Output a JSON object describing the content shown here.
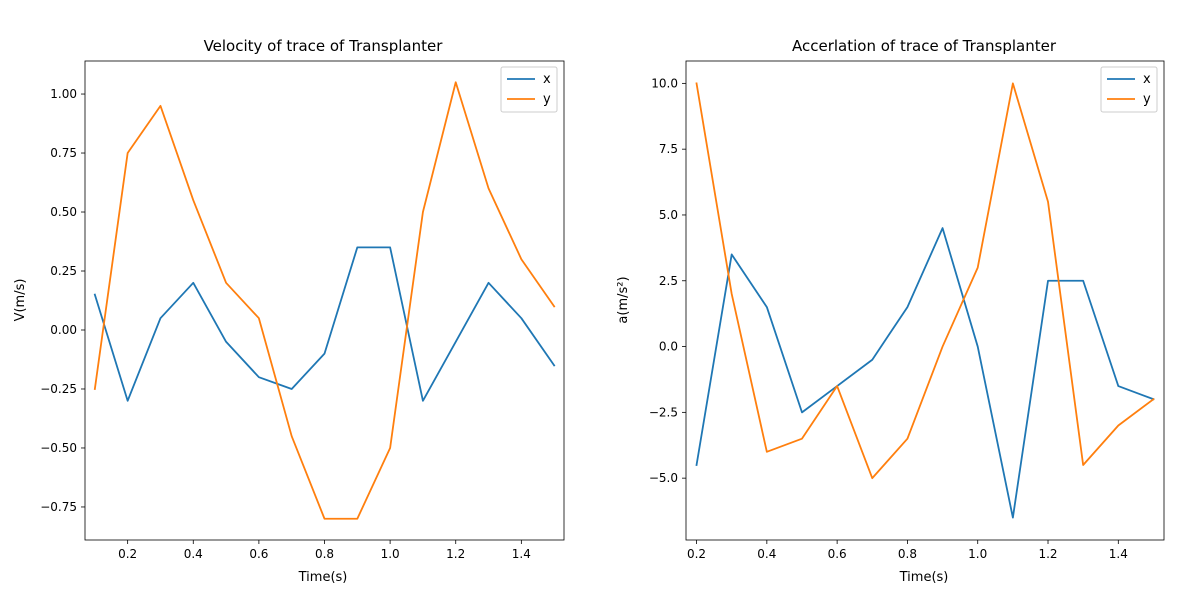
{
  "chart_data": [
    {
      "type": "line",
      "title": "Velocity of trace of Transplanter",
      "xlabel": "Time(s)",
      "ylabel": "V(m/s)",
      "xlim": [
        0.07,
        1.53
      ],
      "ylim": [
        -0.89,
        1.14
      ],
      "xticks": [
        0.2,
        0.4,
        0.6,
        0.8,
        1.0,
        1.2,
        1.4
      ],
      "xtick_labels": [
        "0.2",
        "0.4",
        "0.6",
        "0.8",
        "1.0",
        "1.2",
        "1.4"
      ],
      "yticks": [
        -0.75,
        -0.5,
        -0.25,
        0.0,
        0.25,
        0.5,
        0.75,
        1.0
      ],
      "ytick_labels": [
        "−0.75",
        "−0.50",
        "−0.25",
        "0.00",
        "0.25",
        "0.50",
        "0.75",
        "1.00"
      ],
      "legend_position": "top-right",
      "x": [
        0.1,
        0.2,
        0.3,
        0.4,
        0.5,
        0.6,
        0.7,
        0.8,
        0.9,
        1.0,
        1.1,
        1.2,
        1.3,
        1.4,
        1.5
      ],
      "series": [
        {
          "name": "x",
          "color": "#1f77b4",
          "values": [
            0.15,
            -0.3,
            0.05,
            0.2,
            -0.05,
            -0.2,
            -0.25,
            -0.1,
            0.35,
            0.35,
            -0.3,
            -0.05,
            0.2,
            0.05,
            -0.15
          ]
        },
        {
          "name": "y",
          "color": "#ff7f0e",
          "values": [
            -0.25,
            0.75,
            0.95,
            0.55,
            0.2,
            0.05,
            -0.45,
            -0.8,
            -0.8,
            -0.5,
            0.5,
            1.05,
            0.6,
            0.3,
            0.1
          ]
        }
      ]
    },
    {
      "type": "line",
      "title": "Accerlation of trace of Transplanter",
      "xlabel": "Time(s)",
      "ylabel": "a(m/s²)",
      "xlim": [
        0.17,
        1.53
      ],
      "ylim": [
        -7.35,
        10.85
      ],
      "xticks": [
        0.2,
        0.4,
        0.6,
        0.8,
        1.0,
        1.2,
        1.4
      ],
      "xtick_labels": [
        "0.2",
        "0.4",
        "0.6",
        "0.8",
        "1.0",
        "1.2",
        "1.4"
      ],
      "yticks": [
        -5.0,
        -2.5,
        0.0,
        2.5,
        5.0,
        7.5,
        10.0
      ],
      "ytick_labels": [
        "−5.0",
        "−2.5",
        "0.0",
        "2.5",
        "5.0",
        "7.5",
        "10.0"
      ],
      "legend_position": "top-right",
      "x": [
        0.2,
        0.3,
        0.4,
        0.5,
        0.6,
        0.7,
        0.8,
        0.9,
        1.0,
        1.1,
        1.2,
        1.3,
        1.4,
        1.5
      ],
      "series": [
        {
          "name": "x",
          "color": "#1f77b4",
          "values": [
            -4.5,
            3.5,
            1.5,
            -2.5,
            -1.5,
            -0.5,
            1.5,
            4.5,
            0.0,
            -6.5,
            2.5,
            2.5,
            -1.5,
            -2.0
          ]
        },
        {
          "name": "y",
          "color": "#ff7f0e",
          "values": [
            10.0,
            2.0,
            -4.0,
            -3.5,
            -1.5,
            -5.0,
            -3.5,
            0.0,
            3.0,
            10.0,
            5.5,
            -4.5,
            -3.0,
            -2.0
          ]
        }
      ]
    }
  ]
}
